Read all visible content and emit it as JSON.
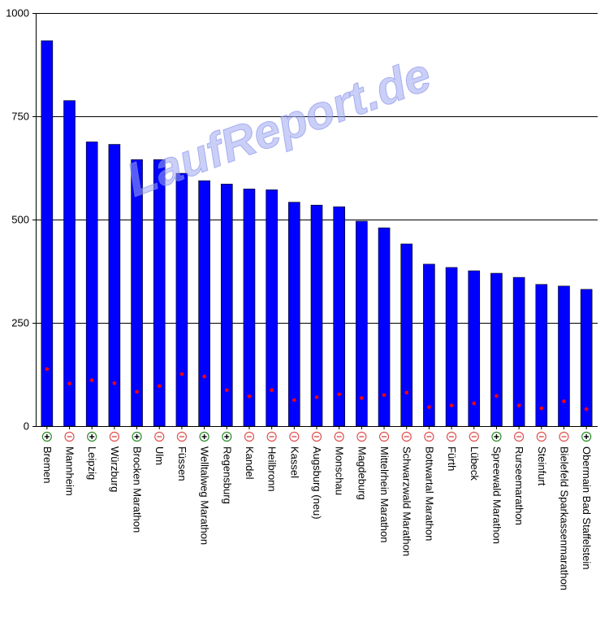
{
  "watermark": "LaufReport.de",
  "colors": {
    "bar": "#0000ff",
    "bar_edge": "#000000",
    "point": "#ff0000",
    "plus_badge": "#2a8a2a",
    "minus_badge": "#e05050",
    "grid": "#000000"
  },
  "chart_data": {
    "type": "bar",
    "title": "",
    "xlabel": "",
    "ylabel": "",
    "ylim": [
      0,
      1000
    ],
    "yticks": [
      0,
      250,
      500,
      750,
      1000
    ],
    "grid": true,
    "categories": [
      "Bremen",
      "Mannheim",
      "Leipzig",
      "Würzburg",
      "Brocken Marathon",
      "Ulm",
      "Füssen",
      "Welltalweg Marathon",
      "Regensburg",
      "Kandel",
      "Heilbronn",
      "Kassel",
      "Augsburg (neu)",
      "Monschau",
      "Magdeburg",
      "Mittelrhein Marathon",
      "Schwarzwald Marathon",
      "Bottwartal Marathon",
      "Fürth",
      "Lübeck",
      "Spreewald Marathon",
      "Rursee­marathon",
      "Steinfurt",
      "Bielefeld Sparkassenmarathon",
      "Obermain Bad Staffelstein"
    ],
    "badges": [
      "plus",
      "minus",
      "plus",
      "minus",
      "plus",
      "minus",
      "minus",
      "plus",
      "plus",
      "minus",
      "minus",
      "minus",
      "minus",
      "minus",
      "minus",
      "minus",
      "minus",
      "minus",
      "minus",
      "minus",
      "plus",
      "minus",
      "minus",
      "minus",
      "plus"
    ],
    "series": [
      {
        "values": [
          933,
          788,
          688,
          682,
          645,
          645,
          612,
          594,
          586,
          574,
          572,
          542,
          535,
          531,
          496,
          480,
          441,
          392,
          384,
          376,
          370,
          360,
          343,
          339,
          331
        ]
      },
      {
        "values": [
          138,
          103,
          111,
          104,
          83,
          97,
          126,
          120,
          87,
          72,
          87,
          63,
          70,
          77,
          68,
          75,
          81,
          46,
          50,
          55,
          73,
          50,
          43,
          60,
          41
        ]
      }
    ]
  }
}
